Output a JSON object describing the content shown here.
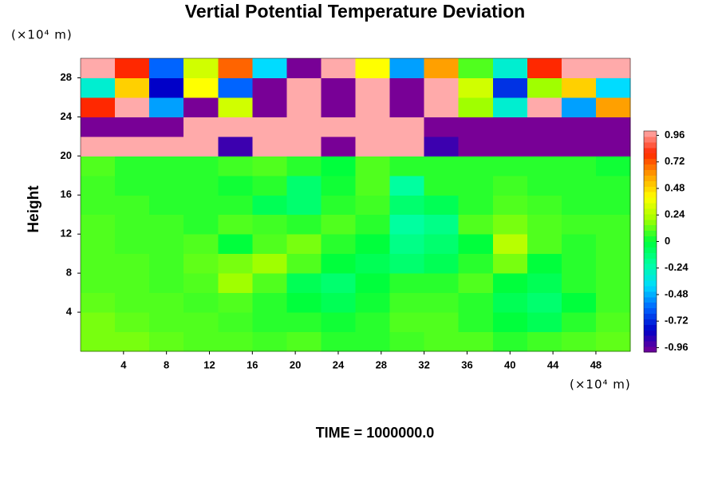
{
  "chart_data": {
    "type": "heatmap",
    "title": "Vertial Potential Temperature Deviation",
    "x_unit_label": "(×10⁴ m)",
    "y_unit_label": "(×10⁴ m)",
    "y_label": "Height",
    "footer": "TIME = 1000000.0",
    "xlim": [
      0,
      51.2
    ],
    "ylim": [
      0,
      30
    ],
    "xticks": [
      4,
      8,
      12,
      16,
      20,
      24,
      28,
      32,
      36,
      40,
      44,
      48
    ],
    "yticks": [
      4,
      8,
      12,
      16,
      20,
      24,
      28
    ],
    "zlim": [
      -1,
      1
    ],
    "zticks": [
      0.96,
      0.72,
      0.48,
      0.24,
      0,
      -0.24,
      -0.48,
      -0.72,
      -0.96
    ],
    "colorscale": [
      "#780096",
      "#0000c8",
      "#0064ff",
      "#00dcff",
      "#00ffa0",
      "#00ff3c",
      "#a0ff00",
      "#ffff00",
      "#ffa000",
      "#ff2800",
      "#ffaaaa"
    ],
    "x": [
      1.6,
      4.8,
      8,
      11.2,
      14.4,
      17.6,
      20.8,
      24,
      27.2,
      30.4,
      33.6,
      36.8,
      40,
      43.2,
      46.4,
      49.6
    ],
    "y": [
      1,
      3,
      5,
      7,
      9,
      11,
      13,
      15,
      17,
      19,
      21,
      23,
      25,
      27,
      29
    ],
    "z": [
      [
        0.15,
        0.15,
        0.12,
        0.1,
        0.1,
        0.08,
        0.1,
        0.05,
        0.05,
        0.08,
        0.1,
        0.1,
        0.05,
        0.08,
        0.1,
        0.12
      ],
      [
        0.15,
        0.12,
        0.1,
        0.1,
        0.08,
        0.05,
        0.05,
        0.02,
        0.05,
        0.1,
        0.1,
        0.05,
        0,
        -0.05,
        0.05,
        0.1
      ],
      [
        0.12,
        0.1,
        0.1,
        0.08,
        0.1,
        0.05,
        0,
        -0.05,
        0.02,
        0.08,
        0.08,
        0.05,
        -0.05,
        -0.1,
        0,
        0.08
      ],
      [
        0.1,
        0.1,
        0.08,
        0.1,
        0.2,
        0.1,
        -0.05,
        -0.1,
        0,
        0.05,
        0.05,
        0.1,
        0,
        -0.05,
        0.05,
        0.08
      ],
      [
        0.1,
        0.1,
        0.08,
        0.12,
        0.15,
        0.2,
        0.1,
        0,
        -0.05,
        -0.1,
        -0.05,
        0.05,
        0.15,
        0,
        0.05,
        0.08
      ],
      [
        0.1,
        0.08,
        0.08,
        0.1,
        0,
        0.1,
        0.15,
        0.05,
        0,
        -0.15,
        -0.1,
        0,
        0.25,
        0.1,
        0.05,
        0.08
      ],
      [
        0.1,
        0.08,
        0.08,
        0.05,
        0.1,
        0.08,
        0.05,
        0.1,
        0.05,
        -0.2,
        -0.15,
        0.1,
        0.15,
        0.1,
        0.08,
        0.08
      ],
      [
        0.08,
        0.08,
        0.05,
        0.05,
        0.05,
        -0.05,
        -0.1,
        0.05,
        0.08,
        -0.1,
        -0.05,
        0.05,
        0.1,
        0.08,
        0.05,
        0.05
      ],
      [
        0.08,
        0.05,
        0.05,
        0.05,
        0.02,
        0.05,
        -0.1,
        0.02,
        0.1,
        -0.2,
        0.05,
        0.05,
        0.08,
        0.05,
        0.05,
        0.05
      ],
      [
        0.1,
        0.05,
        0.05,
        0.05,
        0.08,
        0.1,
        0.05,
        0,
        0.1,
        0.05,
        0.05,
        0.05,
        0.05,
        0.05,
        0.05,
        0.02
      ],
      [
        1,
        1,
        1,
        1,
        -0.9,
        1,
        1,
        -1,
        1,
        1,
        -0.9,
        -1,
        -1,
        -1,
        -1,
        -1
      ],
      [
        -1,
        -1,
        -1,
        1,
        1,
        1,
        1,
        1,
        1,
        1,
        -1,
        -1,
        -1,
        -1,
        -1,
        -1
      ],
      [
        0.8,
        1,
        -0.5,
        -1,
        0.3,
        -1,
        1,
        -1,
        1,
        -1,
        1,
        0.2,
        -0.3,
        1,
        -0.5,
        0.6
      ],
      [
        -0.3,
        0.5,
        -0.8,
        0.4,
        -0.6,
        -1,
        1,
        -1,
        1,
        -1,
        1,
        0.3,
        -0.7,
        0.2,
        0.5,
        -0.4
      ],
      [
        1,
        0.8,
        -0.6,
        0.3,
        0.7,
        -0.4,
        -1,
        1,
        0.4,
        -0.5,
        0.6,
        0.1,
        -0.3,
        0.8,
        1,
        1
      ]
    ]
  }
}
